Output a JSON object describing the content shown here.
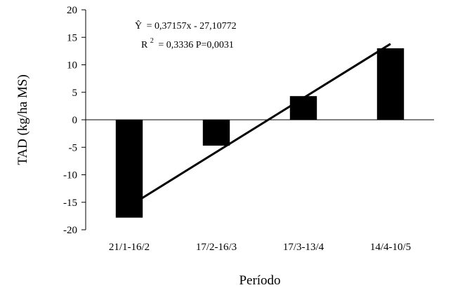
{
  "chart_data": {
    "type": "bar",
    "categories": [
      "21/1-16/2",
      "17/2-16/3",
      "17/3-13/4",
      "14/4-10/5"
    ],
    "values": [
      -17.8,
      -4.7,
      4.3,
      13.0
    ],
    "bar_color": "#000000",
    "xlabel": "Período",
    "ylabel": "TAD (kg/ha MS)",
    "ylim": [
      -20,
      20
    ],
    "yticks": [
      20,
      15,
      10,
      5,
      0,
      -5,
      -10,
      -15,
      -20
    ],
    "ytick_labels": [
      "20",
      "15",
      "10",
      "5",
      "0",
      "-5",
      "-10",
      "-15",
      "-20"
    ],
    "grid": false,
    "trendline": {
      "start": {
        "category_index": 0,
        "y": -15.7
      },
      "end": {
        "category_index": 3,
        "y": 13.8
      },
      "color": "#000000"
    },
    "annotations": {
      "equation_lhs": "Ŷ",
      "equation_rhs": "= 0,37157x - 27,10772",
      "r2_symbol": "R",
      "r2_exponent": "2",
      "r2_rest": "= 0,3336 P=0,0031"
    }
  }
}
